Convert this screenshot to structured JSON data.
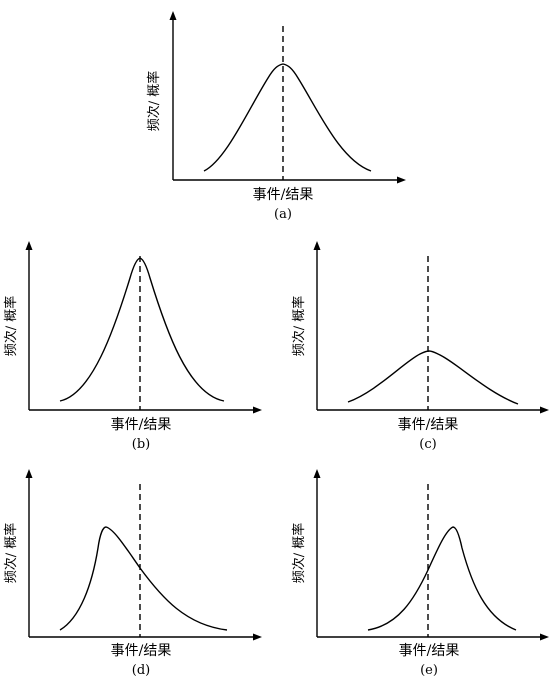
{
  "panels": [
    {
      "id": "a",
      "caption": "(a)",
      "xlabel": "事件/结果",
      "ylabel": "频次/ 概率",
      "shape": "symmetric-normal",
      "peak": "center"
    },
    {
      "id": "b",
      "caption": "(b)",
      "xlabel": "事件/结果",
      "ylabel": "频次/ 概率",
      "shape": "narrow-tall",
      "peak": "center"
    },
    {
      "id": "c",
      "caption": "(c)",
      "xlabel": "事件/结果",
      "ylabel": "频次/ 概率",
      "shape": "wide-flat",
      "peak": "center"
    },
    {
      "id": "d",
      "caption": "(d)",
      "xlabel": "事件/结果",
      "ylabel": "频次/ 概率",
      "shape": "right-skewed",
      "peak": "left-of-center"
    },
    {
      "id": "e",
      "caption": "(e)",
      "xlabel": "事件/结果",
      "ylabel": "频次/ 概率",
      "shape": "left-skewed",
      "peak": "right-of-center"
    }
  ]
}
